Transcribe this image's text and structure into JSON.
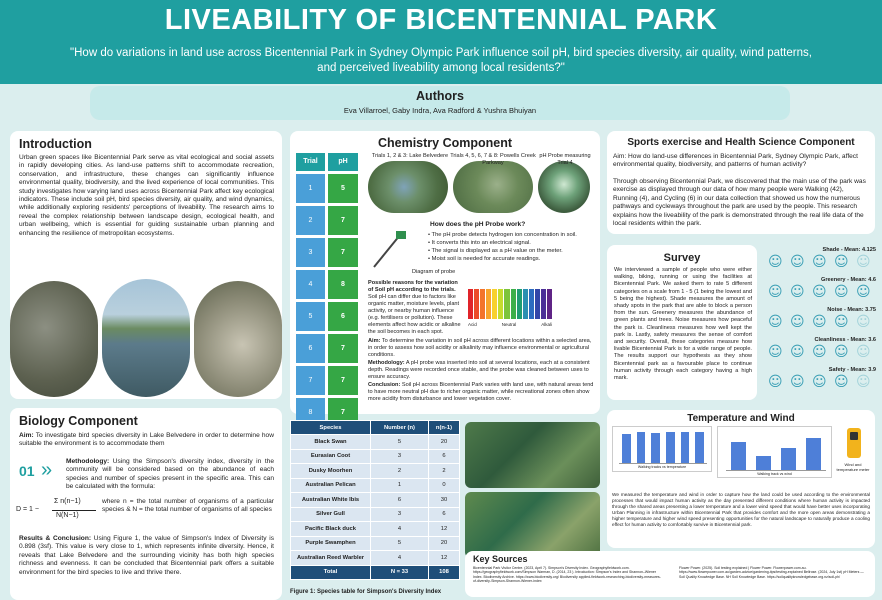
{
  "header": {
    "title": "LIVEABILITY OF BICENTENNIAL PARK",
    "question": "\"How do variations in land use across Bicentennial Park in Sydney Olympic Park influence soil pH, bird species diversity, air quality, wind patterns, and perceived liveability among local residents?\"",
    "authors_heading": "Authors",
    "authors": "Eva Villarroel, Gaby Indra, Ava Radford & Yushra Bhuiyan"
  },
  "intro": {
    "heading": "Introduction",
    "body": "Urban green spaces like Bicentennial Park serve as vital ecological and social assets in rapidly developing cities. As land-use patterns shift to accommodate recreation, conservation, and infrastructure, these changes can significantly influence environmental quality, biodiversity, and the lived experience of local communities. This study investigates how varying land uses across Bicentennial Park affect key ecological indicators. These include soil pH, bird species diversity, air quality, and wind dynamics, while additionally exploring residents' perceptions of liveability. The research aims to reveal the complex relationship between landscape design, ecological health, and urban wellbeing, which is essential for guiding sustainable urban planning and enhancing the resilience of metropolitan ecosystems."
  },
  "biology": {
    "heading": "Biology Component",
    "aim_label": "Aim:",
    "aim": "To investigate bird species diversity in Lake Belvedere in order to determine how suitable the environment is to accommodate them",
    "step": "01",
    "method_label": "Methodology:",
    "method": "Using the Simpson's diversity index, diversity in the community will be considered based on the abundance of each species and number of species present in the specific area. This can be calculated with the formula:",
    "formula_lhs": "D = 1 −",
    "formula_num": "Σ n(n−1)",
    "formula_den": "N(N−1)",
    "formula_where": "where n = the total number of organisms of a particular species & N = the total number of organisms of all species",
    "results_label": "Results & Conclusion:",
    "results": "Using Figure 1, the value of Simpson's Index of Diversity is 0.898 (3sf). This value is very close to 1, which represents infinite diversity. Hence, it reveals that Lake Belvedere and the surrounding vicinity has both high species richness and evenness. It can be concluded that Bicentennial park offers a suitable environment for the bird species to live and thrive there."
  },
  "chemistry": {
    "heading": "Chemistry Component",
    "trial_header": "Trial",
    "ph_header": "pH",
    "trials": [
      {
        "trial": "1",
        "ph": "5"
      },
      {
        "trial": "2",
        "ph": "7"
      },
      {
        "trial": "3",
        "ph": "7"
      },
      {
        "trial": "4",
        "ph": "8"
      },
      {
        "trial": "5",
        "ph": "6"
      },
      {
        "trial": "6",
        "ph": "7"
      },
      {
        "trial": "7",
        "ph": "7"
      },
      {
        "trial": "8",
        "ph": "7"
      }
    ],
    "map_captions": [
      "Trials 1, 2 & 3: Lake Belvedere",
      "Trials 4, 5, 6, 7 & 8: Powells Creek Parkway",
      "pH Probe measuring Trial 4"
    ],
    "diagram_caption": "Diagram of probe",
    "probe_heading": "How does the pH Probe work?",
    "probe_points": [
      "The pH probe detects hydrogen ion concentration in soil.",
      "It converts this into an electrical signal.",
      "The signal is displayed as a pH value on the meter.",
      "Moist soil is needed for accurate readings."
    ],
    "reasons_heading": "Possible reasons for the variation of Soil pH according to the trials.",
    "reasons": "Soil pH can differ due to factors like organic matter, moisture levels, plant activity, or nearby human influence (e.g. fertilisers or pollution). These elements affect how acidic or alkaline the soil becomes in each spot.",
    "scale_labels": [
      "Acid",
      "Neutral",
      "Alkali"
    ],
    "aim_label": "Aim:",
    "aim": "To determine the variation in soil pH across different locations within a selected area, in order to assess how soil acidity or alkalinity may influence environmental or agricultural conditions.",
    "method_label": "Methodology:",
    "method": "A pH probe was inserted into soil at several locations, each at a consistent depth. Readings were recorded once stable, and the probe was cleaned between uses to ensure accuracy.",
    "conclusion_label": "Conclusion:",
    "conclusion": "Soil pH across Bicentennial Park varies with land use, with natural areas tend to have more neutral pH due to richer organic matter, while recreational zones often show more acidity from disturbance and lower vegetation cover."
  },
  "species_table": {
    "headers": [
      "Species",
      "Number (n)",
      "n(n-1)"
    ],
    "rows": [
      [
        "Black Swan",
        "5",
        "20"
      ],
      [
        "Eurasian Coot",
        "3",
        "6"
      ],
      [
        "Dusky Moorhen",
        "2",
        "2"
      ],
      [
        "Australian Pelican",
        "1",
        "0"
      ],
      [
        "Australian White Ibis",
        "6",
        "30"
      ],
      [
        "Silver Gull",
        "3",
        "6"
      ],
      [
        "Pacific Black duck",
        "4",
        "12"
      ],
      [
        "Purple Swamphen",
        "5",
        "20"
      ],
      [
        "Australian Reed Warbler",
        "4",
        "12"
      ]
    ],
    "total": [
      "Total",
      "N = 33",
      "108"
    ],
    "caption": "Figure 1: Species table for Simpson's Diversity Index"
  },
  "sport": {
    "heading": "Sports exercise and Health Science Component",
    "aim": "Aim: How do land-use differences in Bicentennial Park, Sydney Olympic Park, affect environmental quality, biodiversity, and patterns of human activity?",
    "body": "Through observing Bicentennial Park, we discovered that the main use of the park was exercise as displayed through our data of how many people were Walking (42), Running (4), and Cycling (6) in our data collection that showed us how the numerous pathways and cycleways throughout the park are used by the people. This research explains how the liveability of the park is demonstrated through the real life data of the local residents within the park."
  },
  "survey": {
    "heading": "Survey",
    "body": "We interviewed a sample of people who were either walking, biking, running or using the facilities at Bicentennial Park. We asked them to rate 5 different categories on a scale from 1 - 5 (1 being the lowest and 5 being the highest). Shade measures the amount of shady spots in the park that are able to block a person from the sun. Greenery measures the abundance of green plants and trees. Noise measures how peaceful the park is. Cleanliness measures how well kept the park is. Lastly, safety measures the sense of comfort and security. Overall, these categories measure how livable Bicentennial Park is for a wide range of people. The results support our hypothesis as they show Bicentennial park as a favourable place to continue human activity through each category having a high mark.",
    "means": [
      {
        "label": "Shade - Mean: 4.125",
        "value": 4.125
      },
      {
        "label": "Greenery - Mean: 4.6",
        "value": 4.6
      },
      {
        "label": "Noise - Mean: 3.75",
        "value": 3.75
      },
      {
        "label": "Cleanliness - Mean: 3.6",
        "value": 3.6
      },
      {
        "label": "Safety - Mean: 3.9",
        "value": 3.9
      }
    ]
  },
  "temp_wind": {
    "heading": "Temperature and Wind",
    "chart1_caption": "Walking tracks vs temperature",
    "chart2_caption": "Walking track vs wind",
    "meter_caption": "Wind and temperature meter",
    "body": "We measured the temperature and wind in order to capture how the land could be used according to the environmental processes that would impact human activity as the day presented different conditions where human activity is impacted through the shared areas presenting a lower temperature and a lower wind speed that would have better uses incorporating Urban Planning in infrastructure within Bicentennial Park that provides comfort and the more open areas demonstrating a higher temperature and higher wind speed presenting opportunities for the natural landscape to naturally produce a cooling effect for human activity to comfortably survive in Bicentennial park."
  },
  "sources": {
    "heading": "Key Sources",
    "col1": "Bicentennial Park Visitor Centre. (2023, April 7). Simpson's Diversity Index. Geographyfieldwork.com. https://geographyfieldwork.com/Simpson Warman, D. (2014, 23 ). Introduction: Simpson's Index and Shannon–Wiener Index. Biodiversity Archive. https://www.biodiversity.org/ Biodiversity applied-fieldwork-researching-biodiversity-measures-of-diversity-Simpson-Shannon-Wiener-index",
    "col2": "Flower Power. (2025). Soil testing explained | Flower Power. Flowerpower.com.au. https://www.flowerpower.com.au/garden-advice/gardening-tips/testing-explained Bellrose. (2024, July 1st) pH Meters — Soil Quality Knowledge Base. NH Soil Knowledge Base. https://soilqualityknowledgebase.org.nz/soil-ph/"
  },
  "chart_data": [
    {
      "type": "bar",
      "title": "",
      "xlabel": "Walking tracks vs temperature",
      "ylabel": "",
      "categories": [
        "1",
        "2",
        "3",
        "4",
        "5",
        "6"
      ],
      "values": [
        17.5,
        18.6,
        18.4,
        18.8,
        18.9,
        18.7
      ],
      "ylim": [
        0,
        20
      ],
      "grid": true
    },
    {
      "type": "bar",
      "title": "",
      "xlabel": "Walking track vs wind",
      "ylabel": "",
      "categories": [
        "1",
        "2",
        "3",
        "4"
      ],
      "values": [
        2.9,
        1.4,
        2.3,
        3.3
      ],
      "ylim": [
        0,
        4
      ],
      "grid": true
    }
  ],
  "colors": {
    "teal": "#1f9fa0",
    "light_teal": "#c6eaea",
    "trial_blue": "#4a9fd8",
    "ph_green": "#35a745",
    "table_navy": "#1f4e79",
    "table_row": "#dbe6f1",
    "bar_blue": "#4e7fd8"
  }
}
